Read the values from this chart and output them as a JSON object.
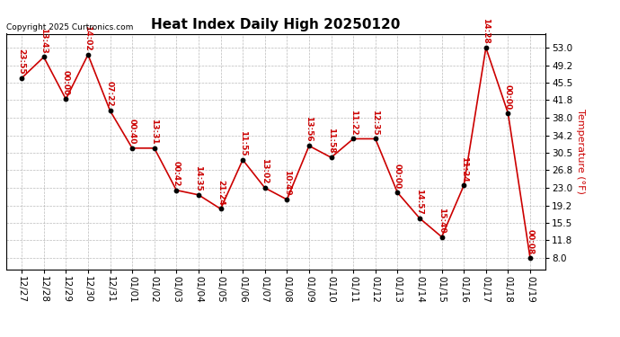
{
  "title": "Heat Index Daily High 20250120",
  "copyright": "Copyright 2025 Curtronics.com",
  "ylabel": "Temperature (°F)",
  "background_color": "#ffffff",
  "line_color": "#cc0000",
  "point_color": "#000000",
  "label_color": "#cc0000",
  "dates": [
    "12/27",
    "12/28",
    "12/29",
    "12/30",
    "12/31",
    "01/01",
    "01/02",
    "01/03",
    "01/04",
    "01/05",
    "01/06",
    "01/07",
    "01/08",
    "01/09",
    "01/10",
    "01/11",
    "01/12",
    "01/13",
    "01/14",
    "01/15",
    "01/16",
    "01/17",
    "01/18",
    "01/19"
  ],
  "values": [
    46.5,
    51.0,
    42.0,
    51.5,
    39.5,
    31.5,
    31.5,
    22.5,
    21.5,
    18.5,
    29.0,
    23.0,
    20.5,
    32.0,
    29.5,
    33.5,
    33.5,
    22.0,
    16.5,
    12.5,
    23.5,
    53.0,
    39.0,
    8.0
  ],
  "labels": [
    "23:55",
    "13:43",
    "00:00",
    "14:02",
    "07:22",
    "00:40",
    "13:31",
    "00:42",
    "14:35",
    "21:24",
    "11:55",
    "13:02",
    "10:49",
    "13:56",
    "11:58",
    "11:22",
    "12:35",
    "00:00",
    "14:57",
    "15:40",
    "11:24",
    "14:28",
    "00:00",
    "00:08"
  ],
  "yticks": [
    8.0,
    11.8,
    15.5,
    19.2,
    23.0,
    26.8,
    30.5,
    34.2,
    38.0,
    41.8,
    45.5,
    49.2,
    53.0
  ],
  "ylim": [
    5.5,
    56.0
  ],
  "xlim": [
    -0.7,
    23.7
  ],
  "title_fontsize": 11,
  "label_fontsize": 6.5,
  "copyright_fontsize": 6.5,
  "ylabel_fontsize": 8,
  "tick_fontsize": 7.5,
  "line_width": 1.2,
  "marker_size": 10
}
